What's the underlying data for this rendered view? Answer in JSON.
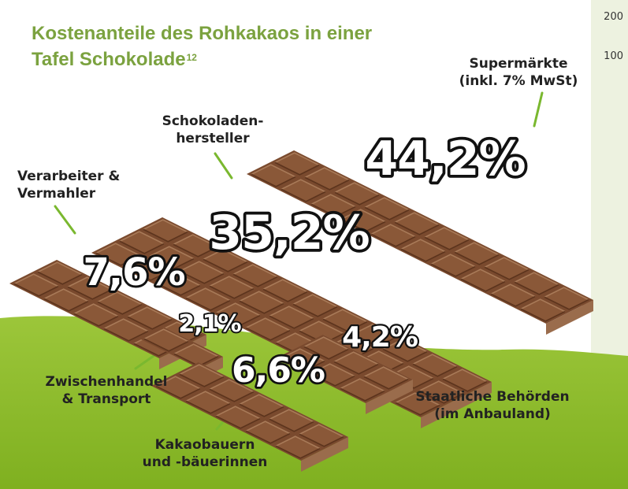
{
  "title_line1": "Kostenanteile des Rohkakaos in einer",
  "title_line2": "Tafel Schokolade",
  "title_sup": "12",
  "sidebar_ticks": [
    "200",
    "100"
  ],
  "colors": {
    "title": "#7ba23f",
    "ground": "#8dbb2a",
    "sidebar": "#edf2e0",
    "chocolate": "#7a4a2e",
    "chocolate_top": "#8a5838",
    "chocolate_side": "#b58a69",
    "label": "#222222",
    "leader": "#7ab82f"
  },
  "chart_data": {
    "type": "pie",
    "categories": [
      "Supermärkte (inkl. 7% MwSt)",
      "Schokoladenhersteller",
      "Verarbeiter & Vermahler",
      "Kakaobauern und -bäuerinnen",
      "Staatliche Behörden (im Anbauland)",
      "Zwischenhandel & Transport"
    ],
    "values": [
      44.2,
      35.2,
      7.6,
      6.6,
      4.2,
      2.1
    ],
    "value_labels": [
      "44,2%",
      "35,2%",
      "7,6%",
      "6,6%",
      "4,2%",
      "2,1%"
    ],
    "labels": {
      "supermaerkte": [
        "Supermärkte",
        "(inkl. 7% MwSt)"
      ],
      "hersteller": [
        "Schokoladen-",
        "hersteller"
      ],
      "verarbeiter": [
        "Verarbeiter &",
        "Vermahler"
      ],
      "zwischenhandel": [
        "Zwischenhandel",
        "& Transport"
      ],
      "kakaobauern": [
        "Kakaobauern",
        "und -bäuerinnen"
      ],
      "behoerden": [
        "Staatliche Behörden",
        "(im Anbauland)"
      ]
    }
  }
}
